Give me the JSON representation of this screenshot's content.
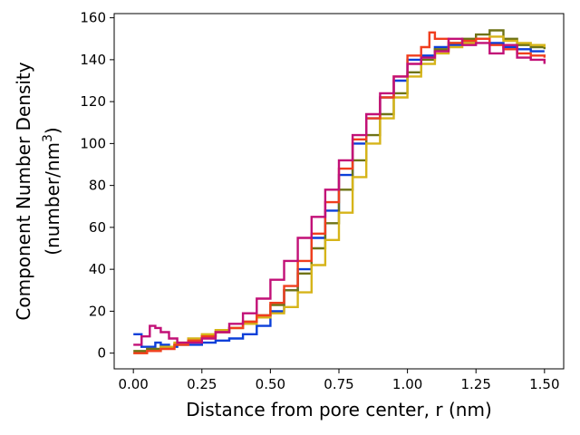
{
  "chart_data": {
    "type": "line",
    "title": "",
    "xlabel": "Distance from pore center, r (nm)",
    "ylabel_line1": "Component Number Density",
    "ylabel_line2_prefix": "(number/nm",
    "ylabel_line2_sup": "3",
    "ylabel_line2_suffix": ")",
    "xlim": [
      -0.07,
      1.57
    ],
    "ylim": [
      -7.5,
      162
    ],
    "xticks": [
      0.0,
      0.25,
      0.5,
      0.75,
      1.0,
      1.25,
      1.5
    ],
    "xtick_labels": [
      "0.00",
      "0.25",
      "0.50",
      "0.75",
      "1.00",
      "1.25",
      "1.50"
    ],
    "yticks": [
      0,
      20,
      40,
      60,
      80,
      100,
      120,
      140,
      160
    ],
    "ytick_labels": [
      "0",
      "20",
      "40",
      "60",
      "80",
      "100",
      "120",
      "140",
      "160"
    ],
    "grid": false,
    "series": [
      {
        "color": "#0b3fd9",
        "points": [
          [
            0.0,
            9
          ],
          [
            0.02,
            9
          ],
          [
            0.03,
            3
          ],
          [
            0.06,
            3
          ],
          [
            0.08,
            5
          ],
          [
            0.1,
            4
          ],
          [
            0.13,
            3
          ],
          [
            0.16,
            4
          ],
          [
            0.2,
            4
          ],
          [
            0.25,
            5
          ],
          [
            0.3,
            6
          ],
          [
            0.35,
            7
          ],
          [
            0.4,
            9
          ],
          [
            0.45,
            13
          ],
          [
            0.5,
            20
          ],
          [
            0.55,
            30
          ],
          [
            0.6,
            40
          ],
          [
            0.65,
            55
          ],
          [
            0.7,
            68
          ],
          [
            0.75,
            85
          ],
          [
            0.8,
            100
          ],
          [
            0.85,
            112
          ],
          [
            0.9,
            122
          ],
          [
            0.95,
            130
          ],
          [
            1.0,
            140
          ],
          [
            1.05,
            142
          ],
          [
            1.1,
            146
          ],
          [
            1.15,
            147
          ],
          [
            1.2,
            149
          ],
          [
            1.25,
            150
          ],
          [
            1.3,
            148
          ],
          [
            1.35,
            146
          ],
          [
            1.4,
            145
          ],
          [
            1.45,
            144
          ],
          [
            1.5,
            144
          ]
        ]
      },
      {
        "color": "#6f7316",
        "points": [
          [
            0.0,
            1
          ],
          [
            0.05,
            2
          ],
          [
            0.1,
            3
          ],
          [
            0.15,
            4
          ],
          [
            0.2,
            6
          ],
          [
            0.25,
            8
          ],
          [
            0.3,
            10
          ],
          [
            0.35,
            12
          ],
          [
            0.4,
            15
          ],
          [
            0.45,
            18
          ],
          [
            0.5,
            23
          ],
          [
            0.55,
            30
          ],
          [
            0.6,
            38
          ],
          [
            0.65,
            50
          ],
          [
            0.7,
            62
          ],
          [
            0.75,
            78
          ],
          [
            0.8,
            92
          ],
          [
            0.85,
            104
          ],
          [
            0.9,
            114
          ],
          [
            0.95,
            124
          ],
          [
            1.0,
            134
          ],
          [
            1.05,
            140
          ],
          [
            1.1,
            145
          ],
          [
            1.15,
            148
          ],
          [
            1.2,
            150
          ],
          [
            1.25,
            152
          ],
          [
            1.3,
            154
          ],
          [
            1.35,
            150
          ],
          [
            1.4,
            147
          ],
          [
            1.45,
            146
          ],
          [
            1.5,
            145
          ]
        ]
      },
      {
        "color": "#d6b419",
        "points": [
          [
            0.0,
            0
          ],
          [
            0.05,
            1
          ],
          [
            0.1,
            3
          ],
          [
            0.15,
            5
          ],
          [
            0.2,
            7
          ],
          [
            0.25,
            9
          ],
          [
            0.3,
            11
          ],
          [
            0.35,
            12
          ],
          [
            0.4,
            14
          ],
          [
            0.45,
            17
          ],
          [
            0.5,
            19
          ],
          [
            0.55,
            22
          ],
          [
            0.6,
            29
          ],
          [
            0.65,
            42
          ],
          [
            0.7,
            54
          ],
          [
            0.75,
            67
          ],
          [
            0.8,
            84
          ],
          [
            0.85,
            100
          ],
          [
            0.9,
            112
          ],
          [
            0.95,
            122
          ],
          [
            1.0,
            132
          ],
          [
            1.05,
            138
          ],
          [
            1.1,
            143
          ],
          [
            1.15,
            146
          ],
          [
            1.2,
            148
          ],
          [
            1.25,
            150
          ],
          [
            1.3,
            151
          ],
          [
            1.35,
            149
          ],
          [
            1.4,
            148
          ],
          [
            1.45,
            147
          ],
          [
            1.5,
            146
          ]
        ]
      },
      {
        "color": "#f03e1e",
        "points": [
          [
            0.0,
            0
          ],
          [
            0.05,
            1
          ],
          [
            0.1,
            2
          ],
          [
            0.15,
            4
          ],
          [
            0.2,
            6
          ],
          [
            0.25,
            8
          ],
          [
            0.3,
            10
          ],
          [
            0.35,
            12
          ],
          [
            0.4,
            15
          ],
          [
            0.45,
            18
          ],
          [
            0.5,
            24
          ],
          [
            0.55,
            32
          ],
          [
            0.6,
            44
          ],
          [
            0.65,
            57
          ],
          [
            0.7,
            72
          ],
          [
            0.75,
            88
          ],
          [
            0.8,
            102
          ],
          [
            0.85,
            112
          ],
          [
            0.9,
            122
          ],
          [
            0.95,
            132
          ],
          [
            1.0,
            142
          ],
          [
            1.05,
            146
          ],
          [
            1.08,
            153
          ],
          [
            1.1,
            150
          ],
          [
            1.15,
            148
          ],
          [
            1.2,
            149
          ],
          [
            1.25,
            150
          ],
          [
            1.3,
            147
          ],
          [
            1.35,
            145
          ],
          [
            1.4,
            143
          ],
          [
            1.45,
            142
          ],
          [
            1.5,
            141
          ]
        ]
      },
      {
        "color": "#c21077",
        "points": [
          [
            0.0,
            4
          ],
          [
            0.03,
            8
          ],
          [
            0.06,
            13
          ],
          [
            0.08,
            12
          ],
          [
            0.1,
            10
          ],
          [
            0.13,
            7
          ],
          [
            0.16,
            5
          ],
          [
            0.2,
            5
          ],
          [
            0.25,
            7
          ],
          [
            0.3,
            10
          ],
          [
            0.35,
            14
          ],
          [
            0.4,
            19
          ],
          [
            0.45,
            26
          ],
          [
            0.5,
            35
          ],
          [
            0.55,
            44
          ],
          [
            0.6,
            55
          ],
          [
            0.65,
            65
          ],
          [
            0.7,
            78
          ],
          [
            0.75,
            92
          ],
          [
            0.8,
            104
          ],
          [
            0.85,
            114
          ],
          [
            0.9,
            124
          ],
          [
            0.95,
            132
          ],
          [
            1.0,
            138
          ],
          [
            1.05,
            141
          ],
          [
            1.1,
            144
          ],
          [
            1.15,
            150
          ],
          [
            1.2,
            147
          ],
          [
            1.25,
            148
          ],
          [
            1.3,
            143
          ],
          [
            1.35,
            147
          ],
          [
            1.4,
            141
          ],
          [
            1.45,
            140
          ],
          [
            1.5,
            138
          ]
        ]
      }
    ]
  }
}
